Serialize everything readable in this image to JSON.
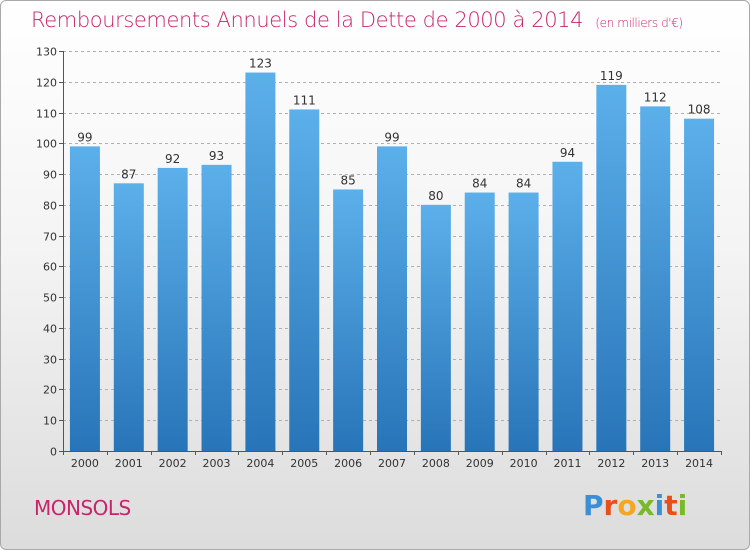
{
  "header": {
    "title": "Remboursements Annuels de la Dette de 2000 à 2014",
    "unit": "(en milliers d'€)"
  },
  "footer": {
    "commune": "MONSOLS",
    "logo_letters": [
      {
        "char": "P",
        "color": "#3a8fd6"
      },
      {
        "char": "r",
        "color": "#e94e1b"
      },
      {
        "char": "o",
        "color": "#f5a623"
      },
      {
        "char": "x",
        "color": "#7ab929"
      },
      {
        "char": "i",
        "color": "#3a8fd6"
      },
      {
        "char": "t",
        "color": "#e94e1b"
      },
      {
        "char": "i",
        "color": "#7ab929"
      }
    ]
  },
  "colors": {
    "accent": "#c8246c",
    "bar_top": "#5cb0ea",
    "bar_bottom": "#2874b8",
    "grid": "#b0b0b0",
    "axis_text": "#333333"
  },
  "chart_data": {
    "type": "bar",
    "title": "Remboursements Annuels de la Dette de 2000 à 2014",
    "subtitle": "(en milliers d'€)",
    "xlabel": "",
    "ylabel": "",
    "categories": [
      "2000",
      "2001",
      "2002",
      "2003",
      "2004",
      "2005",
      "2006",
      "2007",
      "2008",
      "2009",
      "2010",
      "2011",
      "2012",
      "2013",
      "2014"
    ],
    "values": [
      99,
      87,
      92,
      93,
      123,
      111,
      85,
      99,
      80,
      84,
      84,
      94,
      119,
      112,
      108
    ],
    "ylim": [
      0,
      130
    ],
    "yticks": [
      0,
      10,
      20,
      30,
      40,
      50,
      60,
      70,
      80,
      90,
      100,
      110,
      120,
      130
    ],
    "grid": true,
    "grid_style": "dashed-horizontal",
    "data_labels": true,
    "legend": "none"
  }
}
